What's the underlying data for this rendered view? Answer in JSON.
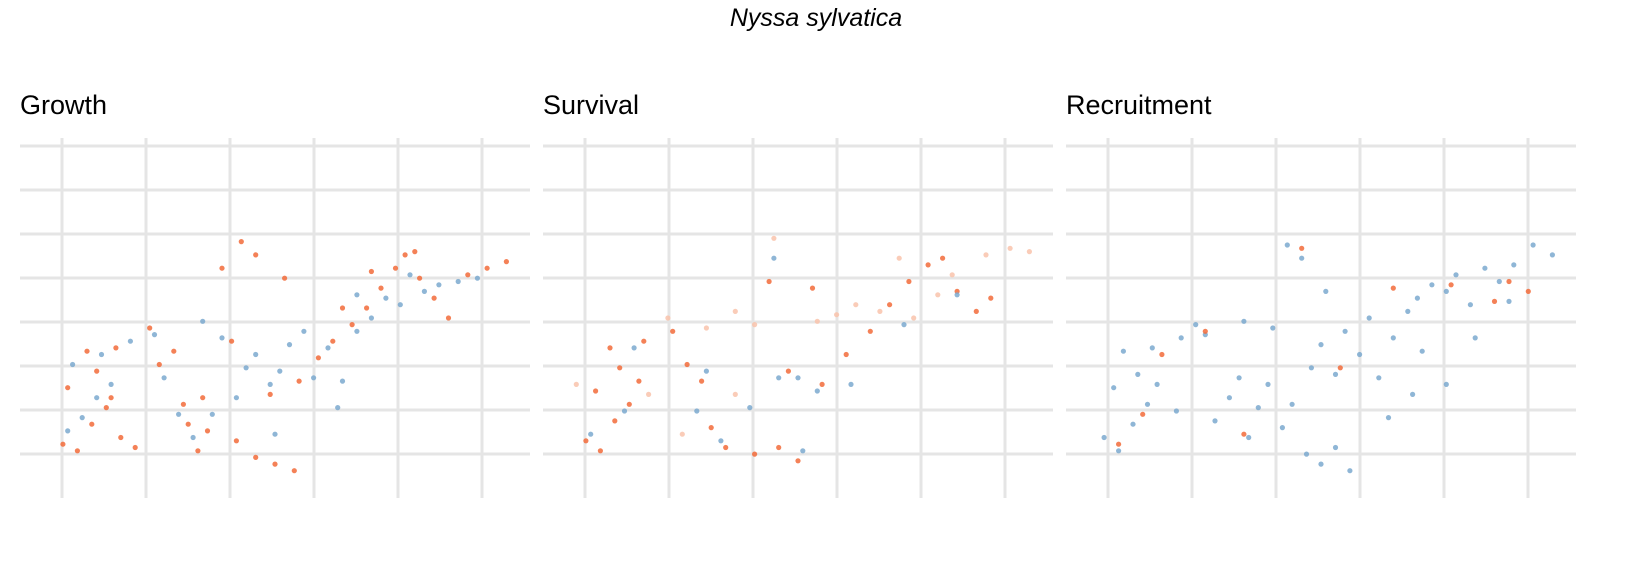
{
  "title": "Nyssa sylvatica",
  "colors": {
    "orange": "#f26b3a",
    "blue": "#7ba9cf",
    "grid": "#e5e5e5"
  },
  "chart_data": [
    {
      "type": "scatter",
      "title": "Growth",
      "xlabel": "",
      "ylabel": "",
      "xlim": [
        0,
        10
      ],
      "ylim": [
        0,
        10
      ],
      "grid": true,
      "series": [
        {
          "color": "#f26b3a",
          "values": [
            [
              0.6,
              1.2
            ],
            [
              0.9,
              1.0
            ],
            [
              1.2,
              1.8
            ],
            [
              1.5,
              2.3
            ],
            [
              1.8,
              1.4
            ],
            [
              0.7,
              2.9
            ],
            [
              1.3,
              3.4
            ],
            [
              1.6,
              2.6
            ],
            [
              1.1,
              4.0
            ],
            [
              1.7,
              4.1
            ],
            [
              2.4,
              4.7
            ],
            [
              2.6,
              3.6
            ],
            [
              2.9,
              4.0
            ],
            [
              3.2,
              1.8
            ],
            [
              3.6,
              1.6
            ],
            [
              3.1,
              2.4
            ],
            [
              3.5,
              2.6
            ],
            [
              4.2,
              1.3
            ],
            [
              4.6,
              0.8
            ],
            [
              5.0,
              0.6
            ],
            [
              5.4,
              0.4
            ],
            [
              4.9,
              2.7
            ],
            [
              5.5,
              3.1
            ],
            [
              5.9,
              3.8
            ],
            [
              6.2,
              4.3
            ],
            [
              6.6,
              4.8
            ],
            [
              6.9,
              5.3
            ],
            [
              7.2,
              5.9
            ],
            [
              7.5,
              6.5
            ],
            [
              7.7,
              6.9
            ],
            [
              8.0,
              6.2
            ],
            [
              8.3,
              5.6
            ],
            [
              8.6,
              5.0
            ],
            [
              9.0,
              6.3
            ],
            [
              9.4,
              6.5
            ],
            [
              9.8,
              6.7
            ],
            [
              4.3,
              7.3
            ],
            [
              4.6,
              6.9
            ],
            [
              5.2,
              6.2
            ],
            [
              6.4,
              5.3
            ],
            [
              7.0,
              6.4
            ],
            [
              7.9,
              7.0
            ],
            [
              3.9,
              6.5
            ],
            [
              4.1,
              4.3
            ],
            [
              2.1,
              1.1
            ],
            [
              3.4,
              1.0
            ]
          ]
        },
        {
          "color": "#7ba9cf",
          "values": [
            [
              0.7,
              1.6
            ],
            [
              1.0,
              2.0
            ],
            [
              1.3,
              2.6
            ],
            [
              1.6,
              3.0
            ],
            [
              0.8,
              3.6
            ],
            [
              1.4,
              3.9
            ],
            [
              2.0,
              4.3
            ],
            [
              2.5,
              4.5
            ],
            [
              2.7,
              3.2
            ],
            [
              3.0,
              2.1
            ],
            [
              3.3,
              1.4
            ],
            [
              3.7,
              2.1
            ],
            [
              4.2,
              2.6
            ],
            [
              4.4,
              3.5
            ],
            [
              4.9,
              3.0
            ],
            [
              5.1,
              3.4
            ],
            [
              5.3,
              4.2
            ],
            [
              5.6,
              4.6
            ],
            [
              5.8,
              3.2
            ],
            [
              6.1,
              4.1
            ],
            [
              6.4,
              3.1
            ],
            [
              6.7,
              4.6
            ],
            [
              7.0,
              5.0
            ],
            [
              7.3,
              5.6
            ],
            [
              7.6,
              5.4
            ],
            [
              8.1,
              5.8
            ],
            [
              8.4,
              6.0
            ],
            [
              8.8,
              6.1
            ],
            [
              9.2,
              6.2
            ],
            [
              3.5,
              4.9
            ],
            [
              3.9,
              4.4
            ],
            [
              4.6,
              3.9
            ],
            [
              6.3,
              2.3
            ],
            [
              5.0,
              1.5
            ],
            [
              6.7,
              5.7
            ],
            [
              7.8,
              6.3
            ]
          ]
        }
      ]
    },
    {
      "type": "scatter",
      "title": "Survival",
      "xlabel": "",
      "ylabel": "",
      "xlim": [
        0,
        10
      ],
      "ylim": [
        0,
        10
      ],
      "grid": true,
      "series": [
        {
          "color": "#f26b3a",
          "values": [
            [
              0.6,
              1.3
            ],
            [
              0.9,
              1.0
            ],
            [
              1.2,
              1.9
            ],
            [
              1.5,
              2.4
            ],
            [
              0.8,
              2.8
            ],
            [
              1.3,
              3.5
            ],
            [
              1.7,
              3.1
            ],
            [
              1.1,
              4.1
            ],
            [
              1.8,
              4.3
            ],
            [
              2.4,
              4.6
            ],
            [
              2.7,
              3.6
            ],
            [
              3.0,
              3.1
            ],
            [
              3.2,
              1.7
            ],
            [
              3.5,
              1.1
            ],
            [
              4.1,
              0.9
            ],
            [
              4.6,
              1.1
            ],
            [
              5.0,
              0.7
            ],
            [
              5.5,
              3.0
            ],
            [
              6.0,
              3.9
            ],
            [
              6.5,
              4.6
            ],
            [
              6.9,
              5.4
            ],
            [
              7.3,
              6.1
            ],
            [
              7.7,
              6.6
            ],
            [
              8.0,
              6.8
            ],
            [
              8.3,
              5.8
            ],
            [
              8.7,
              5.2
            ],
            [
              9.0,
              5.6
            ],
            [
              4.4,
              6.1
            ],
            [
              5.3,
              5.9
            ],
            [
              4.8,
              3.4
            ]
          ]
        },
        {
          "color": "#f9c3ac",
          "values": [
            [
              0.4,
              3.0
            ],
            [
              1.9,
              2.7
            ],
            [
              2.3,
              5.0
            ],
            [
              3.1,
              4.7
            ],
            [
              3.7,
              5.2
            ],
            [
              4.1,
              4.8
            ],
            [
              5.4,
              4.9
            ],
            [
              5.8,
              5.1
            ],
            [
              6.2,
              5.4
            ],
            [
              6.7,
              5.2
            ],
            [
              7.4,
              5.0
            ],
            [
              7.9,
              5.7
            ],
            [
              8.2,
              6.3
            ],
            [
              8.9,
              6.9
            ],
            [
              9.4,
              7.1
            ],
            [
              9.8,
              7.0
            ],
            [
              4.5,
              7.4
            ],
            [
              3.7,
              2.7
            ],
            [
              2.6,
              1.5
            ],
            [
              7.1,
              6.8
            ]
          ]
        },
        {
          "color": "#7ba9cf",
          "values": [
            [
              0.7,
              1.5
            ],
            [
              1.4,
              2.2
            ],
            [
              1.6,
              4.1
            ],
            [
              2.9,
              2.2
            ],
            [
              3.1,
              3.4
            ],
            [
              3.4,
              1.3
            ],
            [
              4.0,
              2.3
            ],
            [
              4.6,
              3.2
            ],
            [
              5.0,
              3.2
            ],
            [
              5.4,
              2.8
            ],
            [
              6.1,
              3.0
            ],
            [
              7.2,
              4.8
            ],
            [
              8.3,
              5.7
            ],
            [
              4.5,
              6.8
            ],
            [
              5.1,
              1.0
            ]
          ]
        }
      ]
    },
    {
      "type": "scatter",
      "title": "Recruitment",
      "xlabel": "",
      "ylabel": "",
      "xlim": [
        0,
        10
      ],
      "ylim": [
        0,
        10
      ],
      "grid": true,
      "series": [
        {
          "color": "#7ba9cf",
          "values": [
            [
              0.5,
              1.4
            ],
            [
              0.8,
              1.0
            ],
            [
              1.1,
              1.8
            ],
            [
              1.4,
              2.4
            ],
            [
              0.7,
              2.9
            ],
            [
              1.2,
              3.3
            ],
            [
              1.6,
              3.0
            ],
            [
              0.9,
              4.0
            ],
            [
              1.5,
              4.1
            ],
            [
              2.1,
              4.4
            ],
            [
              2.4,
              4.8
            ],
            [
              2.6,
              4.5
            ],
            [
              2.8,
              1.9
            ],
            [
              3.1,
              2.6
            ],
            [
              3.3,
              3.2
            ],
            [
              3.5,
              1.4
            ],
            [
              3.7,
              2.3
            ],
            [
              3.9,
              3.0
            ],
            [
              4.2,
              1.7
            ],
            [
              4.4,
              2.4
            ],
            [
              4.7,
              0.9
            ],
            [
              5.0,
              0.6
            ],
            [
              5.3,
              1.1
            ],
            [
              5.6,
              0.4
            ],
            [
              4.8,
              3.5
            ],
            [
              5.0,
              4.2
            ],
            [
              5.3,
              3.3
            ],
            [
              5.5,
              4.6
            ],
            [
              5.8,
              3.9
            ],
            [
              6.0,
              5.0
            ],
            [
              6.2,
              3.2
            ],
            [
              6.5,
              4.4
            ],
            [
              6.8,
              5.2
            ],
            [
              7.1,
              4.0
            ],
            [
              7.0,
              5.6
            ],
            [
              7.3,
              6.0
            ],
            [
              7.6,
              5.8
            ],
            [
              7.8,
              6.3
            ],
            [
              8.1,
              5.4
            ],
            [
              8.4,
              6.5
            ],
            [
              8.7,
              6.1
            ],
            [
              9.0,
              6.6
            ],
            [
              9.4,
              7.2
            ],
            [
              9.8,
              6.9
            ],
            [
              4.3,
              7.2
            ],
            [
              4.6,
              6.8
            ],
            [
              5.1,
              5.8
            ],
            [
              6.9,
              2.7
            ],
            [
              8.2,
              4.4
            ],
            [
              4.0,
              4.7
            ],
            [
              3.4,
              4.9
            ],
            [
              2.0,
              2.2
            ],
            [
              6.4,
              2.0
            ],
            [
              7.6,
              3.0
            ],
            [
              8.9,
              5.5
            ]
          ]
        },
        {
          "color": "#f26b3a",
          "values": [
            [
              0.8,
              1.2
            ],
            [
              1.3,
              2.1
            ],
            [
              1.7,
              3.9
            ],
            [
              3.4,
              1.5
            ],
            [
              5.4,
              3.5
            ],
            [
              7.7,
              6.0
            ],
            [
              8.9,
              6.1
            ],
            [
              9.3,
              5.8
            ],
            [
              4.6,
              7.1
            ],
            [
              2.6,
              4.6
            ],
            [
              6.5,
              5.9
            ],
            [
              8.6,
              5.5
            ]
          ]
        }
      ]
    }
  ]
}
